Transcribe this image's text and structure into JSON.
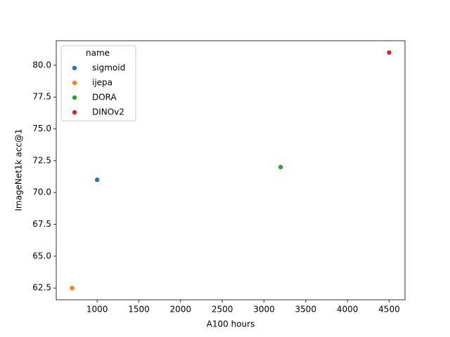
{
  "chart_data": {
    "type": "scatter",
    "xlabel": "A100 hours",
    "ylabel": "ImageNet1k acc@1",
    "legend_title": "name",
    "legend_loc": "upper left",
    "series": [
      {
        "name": "sigmoid",
        "color": "#1f77b4",
        "x": [
          1000
        ],
        "values": [
          71
        ]
      },
      {
        "name": "ijepa",
        "color": "#ff7f0e",
        "x": [
          700
        ],
        "values": [
          62.5
        ]
      },
      {
        "name": "DORA",
        "color": "#2ca02c",
        "x": [
          3200
        ],
        "values": [
          72
        ]
      },
      {
        "name": "DINOv2",
        "color": "#d62728",
        "x": [
          4500
        ],
        "values": [
          81
        ]
      }
    ],
    "xlim": [
      510,
      4690
    ],
    "xticks": [
      1000,
      1500,
      2000,
      2500,
      3000,
      3500,
      4000,
      4500
    ],
    "ylim": [
      61.575,
      81.925
    ],
    "yticks": [
      62.5,
      {
        "value": 65,
        "label": "65.0"
      },
      67.5,
      {
        "value": 70,
        "label": "70.0"
      },
      72.5,
      {
        "value": 75,
        "label": "75.0"
      },
      77.5,
      {
        "value": 80,
        "label": "80.0"
      }
    ],
    "grid": false
  }
}
